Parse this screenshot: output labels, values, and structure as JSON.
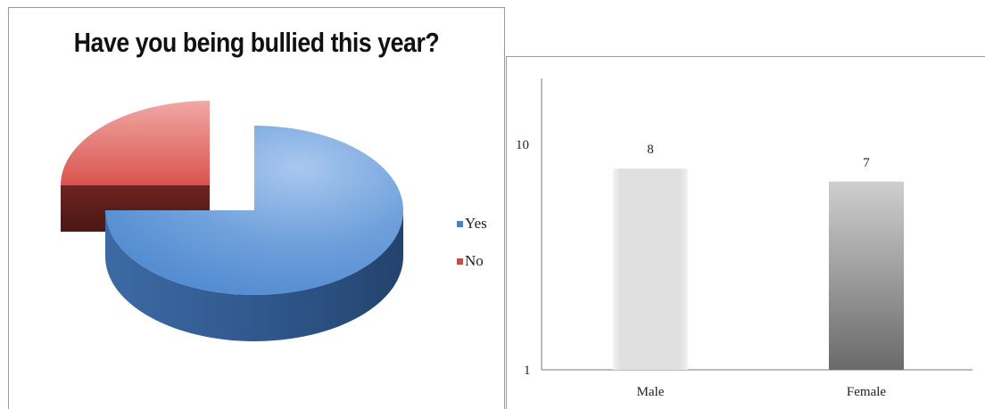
{
  "chart_data": [
    {
      "type": "pie",
      "title": "Have you being bullied this year?",
      "categories": [
        "Yes",
        "No"
      ],
      "values": [
        75,
        25
      ],
      "colors": [
        "#4f81bd",
        "#c0504d"
      ],
      "legend_placement": "right",
      "exploded": true,
      "three_d": true
    },
    {
      "type": "bar",
      "categories": [
        "Male",
        "Female"
      ],
      "values": [
        8,
        7
      ],
      "data_labels": [
        "8",
        "7"
      ],
      "yticks": [
        "10",
        "1"
      ],
      "ylim": [
        1,
        20
      ],
      "yscale": "log",
      "grid": false,
      "bar_fills": [
        "#e3e3e3",
        "gradient-grey"
      ]
    }
  ]
}
